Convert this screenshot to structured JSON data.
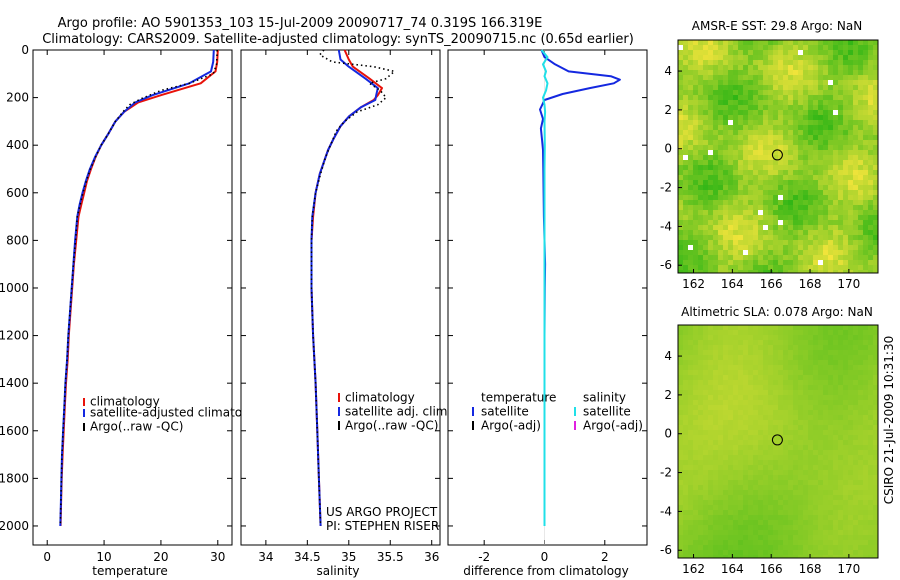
{
  "title": {
    "line1": "Argo profile: AO 5901353_103 15-Jul-2009 20090717_74 0.319S 166.319E",
    "line2": "Climatology: CARS2009. Satellite-adjusted climatology: synTS_20090715.nc (0.65d earlier)"
  },
  "footer": {
    "credit": "CSIRO 21-Jul-2009 10:31:30",
    "project_line1": "US ARGO PROJECT",
    "project_line2": "PI: STEPHEN RISER"
  },
  "colors": {
    "climatology": "#e8120a",
    "satellite": "#1428e0",
    "argo": "#000000",
    "salinity_satellite": "#20e0e8",
    "salinity_argo": "#e020e0"
  },
  "chart_data": [
    {
      "id": "temperature",
      "type": "line",
      "xlabel": "temperature",
      "ylabel": "",
      "xlim": [
        -2.5,
        32.5
      ],
      "ylim": [
        0,
        2080
      ],
      "y_reversed": true,
      "xticks": [
        0,
        10,
        20,
        30
      ],
      "yticks": [
        0,
        200,
        400,
        600,
        800,
        1000,
        1200,
        1400,
        1600,
        1800,
        2000
      ],
      "legend": [
        "climatology",
        "satellite-adjusted climatology",
        "Argo(..raw -QC)"
      ],
      "series": [
        {
          "name": "climatology",
          "style": "solid",
          "color_key": "climatology",
          "points": [
            [
              30.0,
              0
            ],
            [
              29.9,
              50
            ],
            [
              29.6,
              90
            ],
            [
              27,
              140
            ],
            [
              20,
              190
            ],
            [
              16,
              220
            ],
            [
              13.5,
              260
            ],
            [
              12,
              300
            ],
            [
              10.8,
              350
            ],
            [
              9.5,
              400
            ],
            [
              8.5,
              450
            ],
            [
              7.7,
              500
            ],
            [
              7.0,
              550
            ],
            [
              6.5,
              600
            ],
            [
              6.0,
              650
            ],
            [
              5.5,
              700
            ],
            [
              5.1,
              800
            ],
            [
              4.7,
              900
            ],
            [
              4.4,
              1000
            ],
            [
              4.1,
              1100
            ],
            [
              3.8,
              1200
            ],
            [
              3.6,
              1300
            ],
            [
              3.3,
              1400
            ],
            [
              3.1,
              1500
            ],
            [
              2.9,
              1600
            ],
            [
              2.7,
              1700
            ],
            [
              2.55,
              1800
            ],
            [
              2.45,
              1900
            ],
            [
              2.35,
              2000
            ]
          ]
        },
        {
          "name": "satellite-adjusted climatology",
          "style": "solid",
          "color_key": "satellite",
          "points": [
            [
              29.3,
              0
            ],
            [
              29.2,
              50
            ],
            [
              28.8,
              90
            ],
            [
              25,
              140
            ],
            [
              18.5,
              190
            ],
            [
              15.5,
              220
            ],
            [
              13.5,
              260
            ],
            [
              12,
              300
            ],
            [
              10.8,
              350
            ],
            [
              9.5,
              400
            ],
            [
              8.4,
              450
            ],
            [
              7.5,
              500
            ],
            [
              6.8,
              550
            ],
            [
              6.2,
              600
            ],
            [
              5.7,
              650
            ],
            [
              5.3,
              700
            ],
            [
              4.9,
              800
            ],
            [
              4.6,
              900
            ],
            [
              4.3,
              1000
            ],
            [
              4.0,
              1100
            ],
            [
              3.7,
              1200
            ],
            [
              3.5,
              1300
            ],
            [
              3.2,
              1400
            ],
            [
              3.0,
              1500
            ],
            [
              2.8,
              1600
            ],
            [
              2.6,
              1700
            ],
            [
              2.5,
              1800
            ],
            [
              2.4,
              1900
            ],
            [
              2.3,
              2000
            ]
          ]
        },
        {
          "name": "Argo(..raw -QC)",
          "style": "dotted",
          "color_key": "argo",
          "points": [
            [
              29.9,
              0
            ],
            [
              29.8,
              60
            ],
            [
              29.2,
              100
            ],
            [
              25,
              140
            ],
            [
              20,
              170
            ],
            [
              16.5,
              205
            ],
            [
              14.5,
              230
            ],
            [
              13.5,
              255
            ],
            [
              12,
              300
            ],
            [
              10.8,
              350
            ],
            [
              9.5,
              400
            ],
            [
              8.5,
              450
            ],
            [
              7.6,
              500
            ],
            [
              6.9,
              550
            ],
            [
              6.3,
              600
            ],
            [
              5.8,
              650
            ],
            [
              5.3,
              700
            ],
            [
              5.0,
              800
            ],
            [
              4.6,
              900
            ],
            [
              4.3,
              1000
            ],
            [
              4.0,
              1100
            ],
            [
              3.7,
              1200
            ],
            [
              3.5,
              1300
            ],
            [
              3.2,
              1400
            ],
            [
              3.0,
              1500
            ],
            [
              2.8,
              1600
            ],
            [
              2.6,
              1700
            ],
            [
              2.5,
              1800
            ],
            [
              2.4,
              1900
            ],
            [
              2.3,
              2000
            ]
          ]
        }
      ]
    },
    {
      "id": "salinity",
      "type": "line",
      "xlabel": "salinity",
      "xlim": [
        33.7,
        36.1
      ],
      "ylim": [
        0,
        2080
      ],
      "y_reversed": true,
      "xticks": [
        34,
        34.5,
        35,
        35.5,
        36
      ],
      "xticklabels": [
        "34",
        "34.5",
        "35",
        "35.5",
        "36"
      ],
      "legend": [
        "climatology",
        "satellite adj. clim.",
        "Argo(..raw -QC)"
      ],
      "series": [
        {
          "name": "climatology",
          "style": "solid",
          "color_key": "climatology",
          "points": [
            [
              34.95,
              0
            ],
            [
              35.0,
              40
            ],
            [
              35.05,
              70
            ],
            [
              35.25,
              120
            ],
            [
              35.4,
              160
            ],
            [
              35.35,
              190
            ],
            [
              35.3,
              210
            ],
            [
              35.15,
              240
            ],
            [
              35.0,
              280
            ],
            [
              34.9,
              320
            ],
            [
              34.82,
              370
            ],
            [
              34.75,
              420
            ],
            [
              34.7,
              470
            ],
            [
              34.65,
              520
            ],
            [
              34.6,
              600
            ],
            [
              34.57,
              700
            ],
            [
              34.55,
              800
            ],
            [
              34.55,
              1000
            ],
            [
              34.57,
              1200
            ],
            [
              34.6,
              1400
            ],
            [
              34.62,
              1600
            ],
            [
              34.64,
              1800
            ],
            [
              34.66,
              2000
            ]
          ]
        },
        {
          "name": "satellite adj. clim.",
          "style": "solid",
          "color_key": "satellite",
          "points": [
            [
              34.88,
              0
            ],
            [
              34.9,
              40
            ],
            [
              35.0,
              70
            ],
            [
              35.2,
              120
            ],
            [
              35.35,
              160
            ],
            [
              35.33,
              190
            ],
            [
              35.32,
              210
            ],
            [
              35.15,
              240
            ],
            [
              35.0,
              280
            ],
            [
              34.9,
              320
            ],
            [
              34.82,
              370
            ],
            [
              34.75,
              420
            ],
            [
              34.7,
              470
            ],
            [
              34.65,
              520
            ],
            [
              34.6,
              600
            ],
            [
              34.56,
              700
            ],
            [
              34.55,
              800
            ],
            [
              34.55,
              1000
            ],
            [
              34.57,
              1200
            ],
            [
              34.6,
              1400
            ],
            [
              34.62,
              1600
            ],
            [
              34.64,
              1800
            ],
            [
              34.66,
              2000
            ]
          ]
        },
        {
          "name": "Argo(..raw -QC)",
          "style": "dotted",
          "color_key": "argo",
          "points": [
            [
              34.7,
              0
            ],
            [
              34.65,
              20
            ],
            [
              34.8,
              50
            ],
            [
              35.3,
              70
            ],
            [
              35.55,
              90
            ],
            [
              35.45,
              120
            ],
            [
              35.25,
              140
            ],
            [
              35.38,
              170
            ],
            [
              35.45,
              200
            ],
            [
              35.35,
              230
            ],
            [
              35.1,
              260
            ],
            [
              34.95,
              300
            ],
            [
              34.85,
              340
            ],
            [
              34.78,
              400
            ],
            [
              34.72,
              450
            ],
            [
              34.66,
              520
            ],
            [
              34.6,
              600
            ],
            [
              34.56,
              700
            ],
            [
              34.55,
              800
            ],
            [
              34.55,
              1000
            ],
            [
              34.57,
              1200
            ],
            [
              34.6,
              1400
            ],
            [
              34.62,
              1600
            ],
            [
              34.64,
              1800
            ],
            [
              34.66,
              2000
            ]
          ]
        }
      ]
    },
    {
      "id": "difference",
      "type": "line",
      "xlabel": "difference from climatology",
      "xlim": [
        -3.2,
        3.4
      ],
      "ylim": [
        0,
        2080
      ],
      "y_reversed": true,
      "xticks": [
        -2,
        0,
        2
      ],
      "legend_columns": [
        "temperature",
        "salinity"
      ],
      "legend_temperature": [
        "satellite",
        "Argo(-adj)"
      ],
      "legend_salinity": [
        "satellite",
        "Argo(-adj)"
      ],
      "series": [
        {
          "name": "temperature satellite",
          "style": "solid",
          "color_key": "satellite",
          "points": [
            [
              -0.1,
              0
            ],
            [
              0.0,
              30
            ],
            [
              0.35,
              60
            ],
            [
              0.8,
              90
            ],
            [
              2.2,
              110
            ],
            [
              2.5,
              125
            ],
            [
              2.3,
              140
            ],
            [
              1.5,
              160
            ],
            [
              0.6,
              185
            ],
            [
              0.0,
              210
            ],
            [
              -0.15,
              250
            ],
            [
              -0.05,
              290
            ],
            [
              -0.12,
              330
            ],
            [
              -0.08,
              380
            ],
            [
              -0.05,
              420
            ],
            [
              -0.04,
              500
            ],
            [
              -0.03,
              600
            ],
            [
              -0.02,
              700
            ],
            [
              0.0,
              800
            ],
            [
              0.02,
              900
            ],
            [
              0.01,
              1000
            ],
            [
              0.0,
              1200
            ],
            [
              0.0,
              1400
            ],
            [
              0.0,
              1600
            ],
            [
              0.0,
              1800
            ],
            [
              0.0,
              2000
            ]
          ]
        },
        {
          "name": "salinity satellite",
          "style": "solid",
          "color_key": "salinity_satellite",
          "points": [
            [
              -0.1,
              0
            ],
            [
              0.1,
              30
            ],
            [
              -0.05,
              60
            ],
            [
              0.05,
              90
            ],
            [
              0.0,
              110
            ],
            [
              0.1,
              140
            ],
            [
              0.05,
              170
            ],
            [
              -0.05,
              200
            ],
            [
              0.0,
              230
            ],
            [
              0.02,
              260
            ],
            [
              0.0,
              300
            ],
            [
              0.01,
              400
            ],
            [
              0.0,
              500
            ],
            [
              0.0,
              700
            ],
            [
              0.0,
              1000
            ],
            [
              0.0,
              1500
            ],
            [
              0.0,
              2000
            ]
          ]
        }
      ]
    },
    {
      "id": "sst_map",
      "type": "heatmap",
      "title": "AMSR-E SST: 29.8 Argo: NaN",
      "xlim": [
        161.2,
        171.5
      ],
      "ylim": [
        -6.4,
        5.6
      ],
      "xticks": [
        162,
        164,
        166,
        168,
        170
      ],
      "yticks": [
        4,
        2,
        0,
        -2,
        -4,
        -6
      ],
      "argo_position": [
        166.319,
        -0.319
      ],
      "pattern": "mottled green with yellow patches and white missing-data pixels"
    },
    {
      "id": "sla_map",
      "type": "heatmap",
      "title": "Altimetric SLA: 0.078 Argo: NaN",
      "xlim": [
        161.2,
        171.5
      ],
      "ylim": [
        -6.4,
        5.6
      ],
      "xticks": [
        162,
        164,
        166,
        168,
        170
      ],
      "yticks": [
        4,
        2,
        0,
        -2,
        -4,
        -6
      ],
      "argo_position": [
        166.319,
        -0.319
      ],
      "pattern": "smooth green field with yellow-green highs near center"
    }
  ]
}
